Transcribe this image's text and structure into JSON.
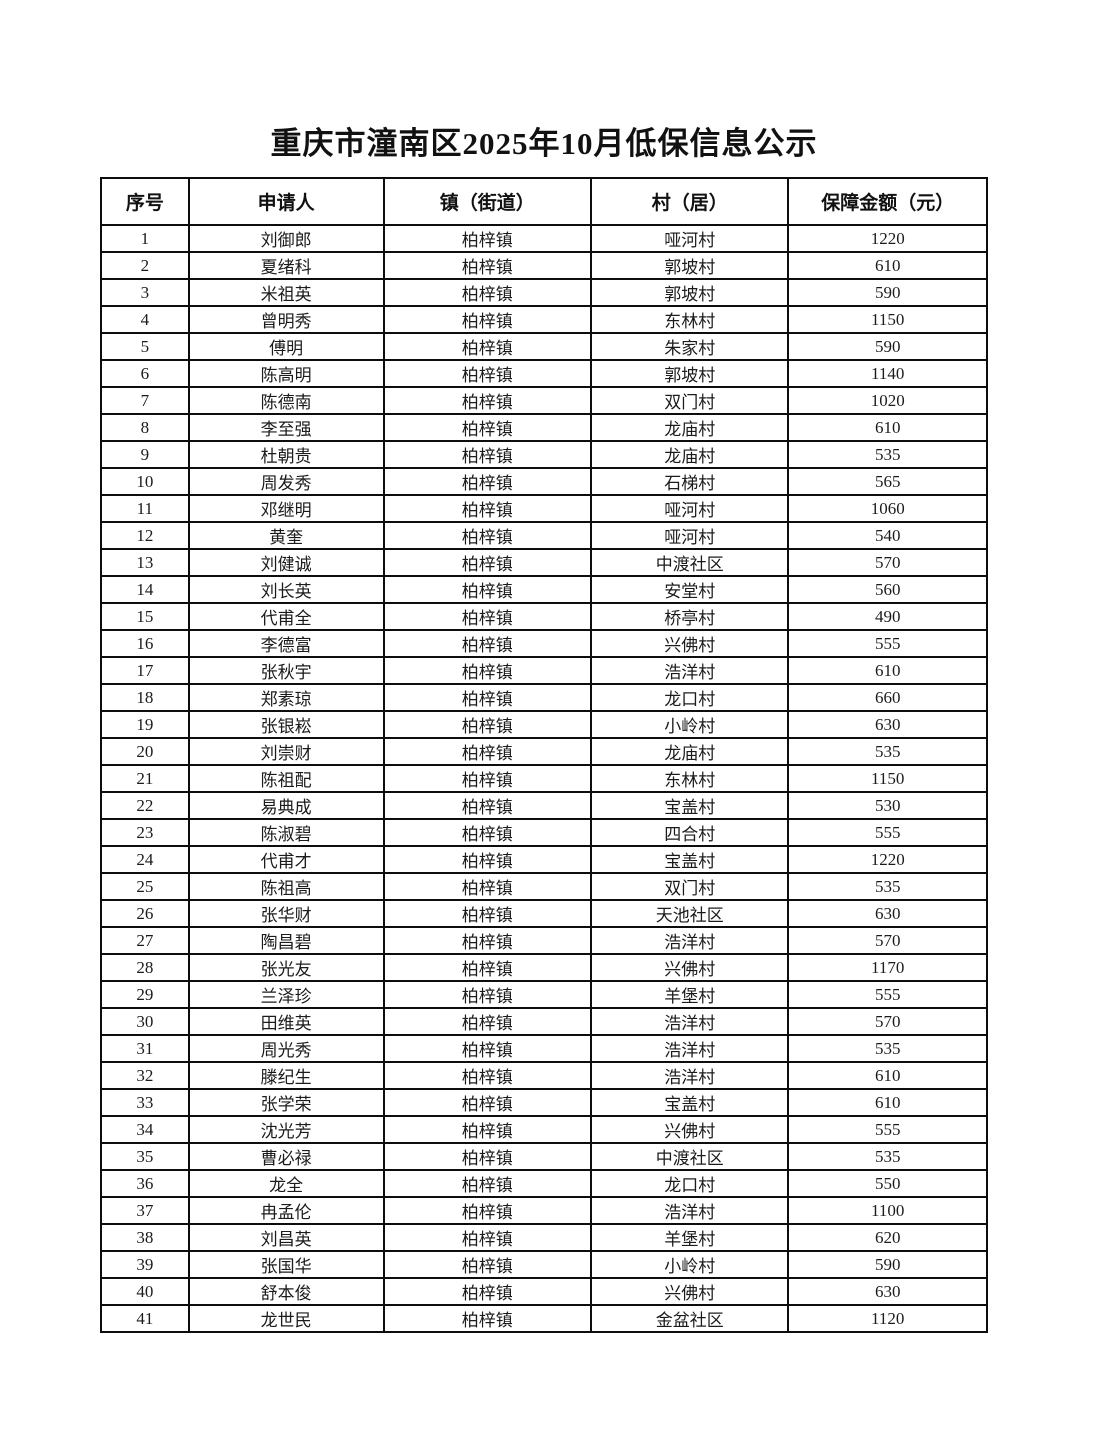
{
  "title": "重庆市潼南区2025年10月低保信息公示",
  "table": {
    "headers": [
      "序号",
      "申请人",
      "镇（街道）",
      "村（居）",
      "保障金额（元）"
    ],
    "rows": [
      [
        "1",
        "刘御郎",
        "柏梓镇",
        "哑河村",
        "1220"
      ],
      [
        "2",
        "夏绪科",
        "柏梓镇",
        "郭坡村",
        "610"
      ],
      [
        "3",
        "米祖英",
        "柏梓镇",
        "郭坡村",
        "590"
      ],
      [
        "4",
        "曾明秀",
        "柏梓镇",
        "东林村",
        "1150"
      ],
      [
        "5",
        "傅明",
        "柏梓镇",
        "朱家村",
        "590"
      ],
      [
        "6",
        "陈高明",
        "柏梓镇",
        "郭坡村",
        "1140"
      ],
      [
        "7",
        "陈德南",
        "柏梓镇",
        "双门村",
        "1020"
      ],
      [
        "8",
        "李至强",
        "柏梓镇",
        "龙庙村",
        "610"
      ],
      [
        "9",
        "杜朝贵",
        "柏梓镇",
        "龙庙村",
        "535"
      ],
      [
        "10",
        "周发秀",
        "柏梓镇",
        "石梯村",
        "565"
      ],
      [
        "11",
        "邓继明",
        "柏梓镇",
        "哑河村",
        "1060"
      ],
      [
        "12",
        "黄奎",
        "柏梓镇",
        "哑河村",
        "540"
      ],
      [
        "13",
        "刘健诚",
        "柏梓镇",
        "中渡社区",
        "570"
      ],
      [
        "14",
        "刘长英",
        "柏梓镇",
        "安堂村",
        "560"
      ],
      [
        "15",
        "代甫全",
        "柏梓镇",
        "桥亭村",
        "490"
      ],
      [
        "16",
        "李德富",
        "柏梓镇",
        "兴佛村",
        "555"
      ],
      [
        "17",
        "张秋宇",
        "柏梓镇",
        "浩洋村",
        "610"
      ],
      [
        "18",
        "郑素琼",
        "柏梓镇",
        "龙口村",
        "660"
      ],
      [
        "19",
        "张银崧",
        "柏梓镇",
        "小岭村",
        "630"
      ],
      [
        "20",
        "刘崇财",
        "柏梓镇",
        "龙庙村",
        "535"
      ],
      [
        "21",
        "陈祖配",
        "柏梓镇",
        "东林村",
        "1150"
      ],
      [
        "22",
        "易典成",
        "柏梓镇",
        "宝盖村",
        "530"
      ],
      [
        "23",
        "陈淑碧",
        "柏梓镇",
        "四合村",
        "555"
      ],
      [
        "24",
        "代甫才",
        "柏梓镇",
        "宝盖村",
        "1220"
      ],
      [
        "25",
        "陈祖高",
        "柏梓镇",
        "双门村",
        "535"
      ],
      [
        "26",
        "张华财",
        "柏梓镇",
        "天池社区",
        "630"
      ],
      [
        "27",
        "陶昌碧",
        "柏梓镇",
        "浩洋村",
        "570"
      ],
      [
        "28",
        "张光友",
        "柏梓镇",
        "兴佛村",
        "1170"
      ],
      [
        "29",
        "兰泽珍",
        "柏梓镇",
        "羊堡村",
        "555"
      ],
      [
        "30",
        "田维英",
        "柏梓镇",
        "浩洋村",
        "570"
      ],
      [
        "31",
        "周光秀",
        "柏梓镇",
        "浩洋村",
        "535"
      ],
      [
        "32",
        "滕纪生",
        "柏梓镇",
        "浩洋村",
        "610"
      ],
      [
        "33",
        "张学荣",
        "柏梓镇",
        "宝盖村",
        "610"
      ],
      [
        "34",
        "沈光芳",
        "柏梓镇",
        "兴佛村",
        "555"
      ],
      [
        "35",
        "曹必禄",
        "柏梓镇",
        "中渡社区",
        "535"
      ],
      [
        "36",
        "龙全",
        "柏梓镇",
        "龙口村",
        "550"
      ],
      [
        "37",
        "冉孟伦",
        "柏梓镇",
        "浩洋村",
        "1100"
      ],
      [
        "38",
        "刘昌英",
        "柏梓镇",
        "羊堡村",
        "620"
      ],
      [
        "39",
        "张国华",
        "柏梓镇",
        "小岭村",
        "590"
      ],
      [
        "40",
        "舒本俊",
        "柏梓镇",
        "兴佛村",
        "630"
      ],
      [
        "41",
        "龙世民",
        "柏梓镇",
        "金盆社区",
        "1120"
      ]
    ]
  }
}
